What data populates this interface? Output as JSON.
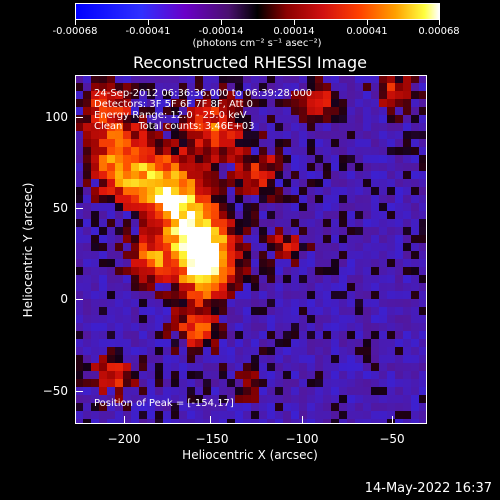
{
  "colorbar": {
    "labels": [
      "-0.00068",
      "-0.00041",
      "-0.00014",
      "0.00014",
      "0.00041",
      "0.00068"
    ],
    "unit": "(photons cm⁻² s⁻¹ asec⁻²)"
  },
  "chart_data": {
    "type": "heatmap",
    "title": "Reconstructed RHESSI Image",
    "xlabel": "Heliocentric X (arcsec)",
    "ylabel": "Heliocentric Y (arcsec)",
    "xlim": [
      -227,
      -33
    ],
    "ylim": [
      -68,
      124
    ],
    "xticks": [
      -200,
      -150,
      -100,
      -50
    ],
    "yticks": [
      -50,
      0,
      50,
      100
    ],
    "xtick_labels": [
      "−200",
      "−150",
      "−100",
      "−50"
    ],
    "ytick_labels": [
      "−50",
      "0",
      "50",
      "100"
    ],
    "color_range": [
      -0.00068,
      0.00068
    ],
    "peak_position": [
      -154,
      17
    ],
    "annotations": [
      "24-Sep-2012 06:36:36.000 to 06:39:28.000",
      "Detectors: 3F 5F 6F 7F 8F, Att 0",
      "Energy Range: 12.0 - 25.0 keV",
      "Clean     Total counts: 3.46E+03",
      "Position of Peak = [-154,17]"
    ]
  },
  "footer": {
    "date": "14-May-2022 16:37"
  }
}
